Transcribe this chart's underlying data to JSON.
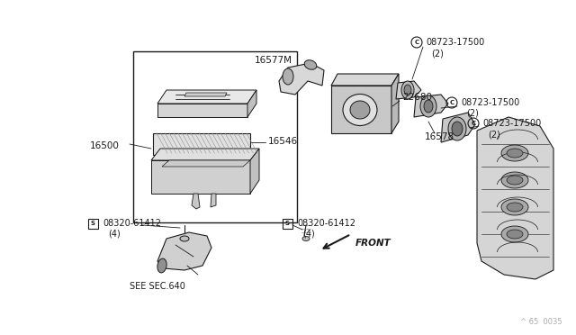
{
  "bg_color": "#ffffff",
  "line_color": "#1a1a1a",
  "text_color": "#1a1a1a",
  "fig_width": 6.4,
  "fig_height": 3.72,
  "dpi": 100,
  "watermark": "^ 65  0035",
  "label_16500": "16500",
  "label_16546": "16546",
  "label_16577M": "16577M",
  "label_22680": "22680",
  "label_16578": "16578",
  "label_c1": "08723-17500",
  "label_c1b": "（2）",
  "label_c2": "08723-17500",
  "label_c2b": "（2）",
  "label_c3": "08723-17500",
  "label_c3b": "（2）",
  "label_s1": "08320-61412",
  "label_s1b": "（4）",
  "label_s2": "08320-61412",
  "label_s2b": "（4）",
  "label_see": "SEE SEC.640",
  "label_front": "FRONT"
}
